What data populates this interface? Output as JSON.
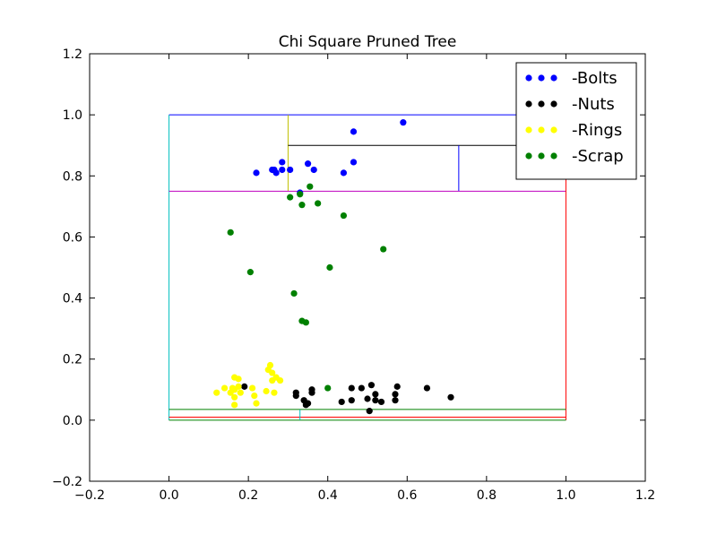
{
  "chart_data": {
    "type": "scatter",
    "title": "Chi Square Pruned Tree",
    "xlabel": "",
    "ylabel": "",
    "xlim": [
      -0.2,
      1.2
    ],
    "ylim": [
      -0.2,
      1.2
    ],
    "x_ticks": [
      "−0.2",
      "0.0",
      "0.2",
      "0.4",
      "0.6",
      "0.8",
      "1.0",
      "1.2"
    ],
    "y_ticks": [
      "−0.2",
      "0.0",
      "0.2",
      "0.4",
      "0.6",
      "0.8",
      "1.0",
      "1.2"
    ],
    "grid": false,
    "legend_position": "top-right",
    "series": [
      {
        "name": "-Bolts",
        "color": "#0000ff",
        "points": [
          [
            0.22,
            0.81
          ],
          [
            0.26,
            0.82
          ],
          [
            0.27,
            0.81
          ],
          [
            0.265,
            0.82
          ],
          [
            0.285,
            0.845
          ],
          [
            0.285,
            0.82
          ],
          [
            0.305,
            0.82
          ],
          [
            0.33,
            0.745
          ],
          [
            0.35,
            0.84
          ],
          [
            0.365,
            0.82
          ],
          [
            0.44,
            0.81
          ],
          [
            0.465,
            0.945
          ],
          [
            0.465,
            0.845
          ],
          [
            0.59,
            0.975
          ]
        ]
      },
      {
        "name": "-Nuts",
        "color": "#000000",
        "points": [
          [
            0.19,
            0.11
          ],
          [
            0.32,
            0.09
          ],
          [
            0.32,
            0.08
          ],
          [
            0.34,
            0.065
          ],
          [
            0.345,
            0.05
          ],
          [
            0.35,
            0.055
          ],
          [
            0.36,
            0.1
          ],
          [
            0.36,
            0.09
          ],
          [
            0.435,
            0.06
          ],
          [
            0.46,
            0.065
          ],
          [
            0.46,
            0.105
          ],
          [
            0.485,
            0.105
          ],
          [
            0.5,
            0.07
          ],
          [
            0.505,
            0.03
          ],
          [
            0.51,
            0.115
          ],
          [
            0.52,
            0.065
          ],
          [
            0.52,
            0.085
          ],
          [
            0.535,
            0.06
          ],
          [
            0.57,
            0.085
          ],
          [
            0.57,
            0.065
          ],
          [
            0.575,
            0.11
          ],
          [
            0.65,
            0.105
          ],
          [
            0.71,
            0.075
          ]
        ]
      },
      {
        "name": "-Rings",
        "color": "#ffff00",
        "points": [
          [
            0.12,
            0.09
          ],
          [
            0.14,
            0.105
          ],
          [
            0.155,
            0.09
          ],
          [
            0.16,
            0.105
          ],
          [
            0.165,
            0.075
          ],
          [
            0.165,
            0.1
          ],
          [
            0.165,
            0.14
          ],
          [
            0.165,
            0.05
          ],
          [
            0.175,
            0.135
          ],
          [
            0.175,
            0.11
          ],
          [
            0.18,
            0.09
          ],
          [
            0.21,
            0.105
          ],
          [
            0.215,
            0.08
          ],
          [
            0.22,
            0.055
          ],
          [
            0.245,
            0.095
          ],
          [
            0.25,
            0.165
          ],
          [
            0.255,
            0.18
          ],
          [
            0.26,
            0.155
          ],
          [
            0.26,
            0.13
          ],
          [
            0.265,
            0.09
          ],
          [
            0.27,
            0.14
          ],
          [
            0.28,
            0.13
          ]
        ]
      },
      {
        "name": "-Scrap",
        "color": "#008000",
        "points": [
          [
            0.155,
            0.615
          ],
          [
            0.205,
            0.485
          ],
          [
            0.305,
            0.73
          ],
          [
            0.315,
            0.415
          ],
          [
            0.33,
            0.74
          ],
          [
            0.335,
            0.705
          ],
          [
            0.335,
            0.325
          ],
          [
            0.345,
            0.32
          ],
          [
            0.355,
            0.765
          ],
          [
            0.375,
            0.71
          ],
          [
            0.4,
            0.105
          ],
          [
            0.405,
            0.5
          ],
          [
            0.44,
            0.67
          ],
          [
            0.54,
            0.56
          ]
        ]
      }
    ],
    "segments": [
      {
        "color": "#0000ff",
        "from": [
          0.0,
          1.0
        ],
        "to": [
          1.0,
          1.0
        ]
      },
      {
        "color": "#00bfbf",
        "from": [
          0.0,
          0.0
        ],
        "to": [
          0.0,
          1.0
        ]
      },
      {
        "color": "#bfbf00",
        "from": [
          0.3,
          0.75
        ],
        "to": [
          0.3,
          1.0
        ]
      },
      {
        "color": "#000000",
        "from": [
          0.3,
          0.9
        ],
        "to": [
          1.0,
          0.9
        ]
      },
      {
        "color": "#0000ff",
        "from": [
          0.73,
          0.75
        ],
        "to": [
          0.73,
          0.9
        ]
      },
      {
        "color": "#bf00bf",
        "from": [
          0.0,
          0.75
        ],
        "to": [
          1.0,
          0.75
        ]
      },
      {
        "color": "#ff0000",
        "from": [
          1.0,
          0.0
        ],
        "to": [
          1.0,
          1.0
        ]
      },
      {
        "color": "#008000",
        "from": [
          0.0,
          0.035
        ],
        "to": [
          1.0,
          0.035
        ]
      },
      {
        "color": "#ff0000",
        "from": [
          0.0,
          0.01
        ],
        "to": [
          1.0,
          0.01
        ]
      },
      {
        "color": "#008000",
        "from": [
          0.0,
          0.0
        ],
        "to": [
          1.0,
          0.0
        ]
      },
      {
        "color": "#00bfbf",
        "from": [
          0.33,
          0.0
        ],
        "to": [
          0.33,
          0.035
        ]
      }
    ]
  }
}
